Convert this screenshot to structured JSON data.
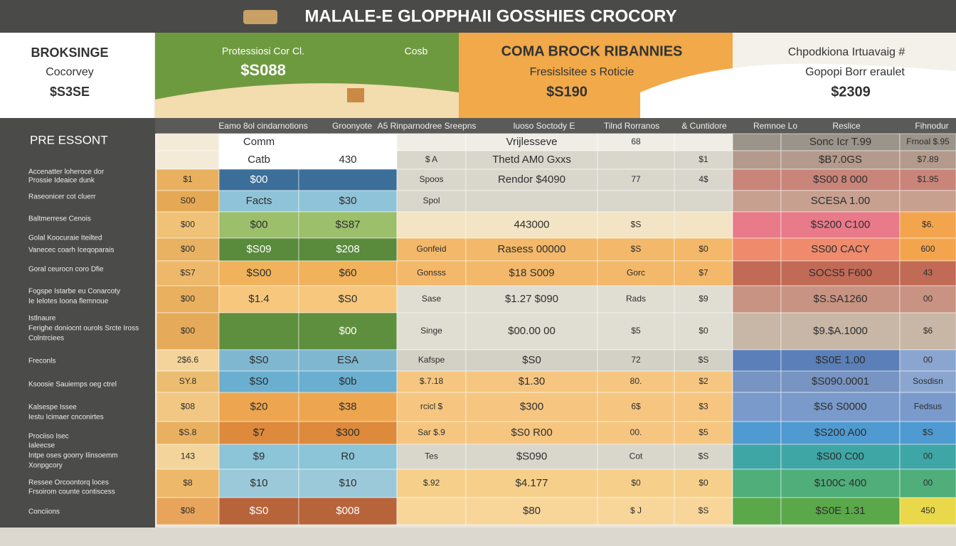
{
  "title": "MALALE-E GLOPPHAII GOSSHIES CROCORY",
  "panels": [
    {
      "lines": [
        "BROKSINGE",
        "Cocorvey",
        "$S3SE"
      ]
    },
    {
      "lines": [
        "Protessiosi Cor Cl.",
        "$S088",
        "Cosb"
      ]
    },
    {
      "lines": [
        "COMA BROCK RIBANNIES",
        "Fresislsitee s Roticie",
        "$S190"
      ]
    },
    {
      "lines": [
        "Chpodkiona Irtuavaig #",
        "Gopopi Borr eraulet",
        "$2309"
      ]
    }
  ],
  "sidebar": {
    "title": "PRE ESSONT",
    "items": [
      "Accenatter loheroce dor",
      "Prossie Ideaice dunk",
      "Raseonicer cot cluerr",
      "Baltmerrese Cenois",
      "Golal Koocuraie Iteilted",
      "Vanecec coarh Iceqoparais",
      "Goral ceurocn coro Dfie",
      "Fogspe Istarbe eu Conarcoty",
      "Ie Ielotes Ioona flemnoue",
      "Istlnaure",
      "Ferighe doniocnt ourols Srcte Iross",
      "Colntrciees",
      "Freconls",
      "Ksoosie Sauiemps oeg ctrel",
      "Kalsespe Issee",
      "Iestu Icimaer cnconirtes",
      "Prociiso Isec",
      "Ialeecse",
      "Intpe oses goorry Ilinsoemm",
      "Xonpgcory",
      "Ressee Orcoontorq loces",
      "Frsoirom counte contiscess",
      "Conciions"
    ]
  },
  "table": {
    "columns": [
      "Eamo 8ol cindarnotions",
      "Groonyote",
      "A5 Rinparnodree Sreepns",
      "luoso Soctody E",
      "Tilnd Rorranos",
      "& Cuntidore",
      "Remnoe Lo",
      "Reslice",
      "Fihnodur"
    ],
    "rows": [
      [
        null,
        "Comm",
        null,
        null,
        "Vrijlesseve",
        "68",
        null,
        null,
        "Sonc Icr T.99",
        "Frnoal $.95"
      ],
      [
        null,
        "Catb",
        "430",
        "$ A",
        "Thetd AM0 Gxxs",
        null,
        "$1",
        null,
        "$B7.0GS",
        "$7.89"
      ],
      [
        "$1",
        "$00",
        null,
        "Spoos",
        "Rendor $4090",
        "77",
        "4$",
        null,
        "$S00 8 000",
        "$1.95"
      ],
      [
        "S00",
        "Facts",
        "$30",
        "Spol",
        null,
        null,
        null,
        null,
        "SCESA 1.00",
        null
      ],
      [
        "$00",
        "$00",
        "$S87",
        null,
        "443000",
        "$S",
        null,
        null,
        "$S200 C100",
        "$6."
      ],
      [
        "$00",
        "$S09",
        "$208",
        "Gonfeid",
        "Rasess 00000",
        "$S",
        "$0",
        null,
        "SS00 CACY",
        "600"
      ],
      [
        "$S7",
        "$S00",
        "$60",
        "Gonsss",
        "$18 S009",
        "Gorc",
        "$7",
        null,
        "SOCS5 F600",
        "43"
      ],
      [
        "$00",
        "$1.4",
        "$S0",
        "Sase",
        "$1.27 $090",
        "Rads",
        "$9",
        null,
        "$S.SA1260",
        "00"
      ],
      [
        "$00",
        null,
        "$00",
        "Singe",
        "$00.00 00",
        "$5",
        "$0",
        null,
        "$9.$A.1000",
        "$6"
      ],
      [
        "2$6.6",
        "$S0",
        "ESA",
        "Kafspe",
        "$S0",
        "72",
        "$S",
        null,
        "$S0E 1.00",
        "00"
      ],
      [
        "SY.8",
        "$S0",
        "$0b",
        "$.7.18",
        "$1.30",
        "80.",
        "$2",
        null,
        "$S090.0001",
        "Sosdisn"
      ],
      [
        "$08",
        "$20",
        "$38",
        "rcicl $",
        "$300",
        "6$",
        "$3",
        null,
        "$S6 S0000",
        "Fedsus"
      ],
      [
        "$S.8",
        "$7",
        "$300",
        "Sar $.9",
        "$S0 R00",
        "00.",
        "$5",
        null,
        "$S200 A00",
        "$S"
      ],
      [
        "143",
        "$9",
        "R0",
        "Tes",
        "$S090",
        "Cot",
        "$S",
        null,
        "$S00 C00",
        "00"
      ],
      [
        "$8",
        "$10",
        "$10",
        "$.92",
        "$4.177",
        "$0",
        "$0",
        null,
        "$100C 400",
        "00"
      ],
      [
        "$08",
        "$S0",
        "$008",
        null,
        "$80",
        "$ J",
        "$S",
        null,
        "$S0E 1.31",
        "450"
      ]
    ]
  }
}
